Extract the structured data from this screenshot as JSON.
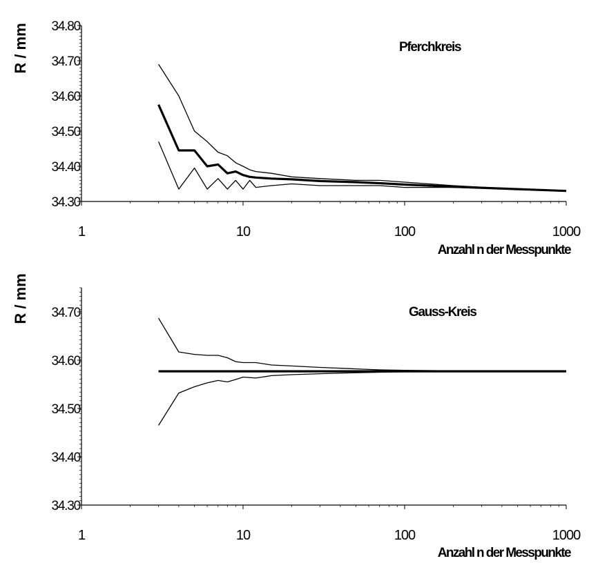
{
  "chart_data": [
    {
      "type": "line",
      "title": "Pferchkreis",
      "xlabel": "Anzahl n der Messpunkte",
      "ylabel": "R / mm",
      "x_scale": "log",
      "xlim": [
        1,
        1000
      ],
      "ylim": [
        34.3,
        34.8
      ],
      "x_ticks": [
        "1",
        "10",
        "100",
        "1000"
      ],
      "y_ticks": [
        "34.30",
        "34.40",
        "34.50",
        "34.60",
        "34.70",
        "34.80"
      ],
      "grid": false,
      "series": [
        {
          "role": "upper",
          "x": [
            3,
            4,
            5,
            6,
            7,
            8,
            9,
            10,
            11,
            12,
            15,
            20,
            30,
            50,
            70,
            100,
            200,
            500,
            1000
          ],
          "y": [
            34.69,
            34.6,
            34.5,
            34.47,
            34.44,
            34.43,
            34.41,
            34.4,
            34.39,
            34.385,
            34.38,
            34.37,
            34.365,
            34.36,
            34.36,
            34.355,
            34.345,
            34.335,
            34.33
          ]
        },
        {
          "role": "mean",
          "x": [
            3,
            4,
            5,
            6,
            7,
            8,
            9,
            10,
            11,
            12,
            15,
            20,
            30,
            50,
            70,
            100,
            200,
            500,
            1000
          ],
          "y": [
            34.575,
            34.445,
            34.445,
            34.4,
            34.405,
            34.38,
            34.385,
            34.375,
            34.37,
            34.368,
            34.365,
            34.363,
            34.358,
            34.355,
            34.352,
            34.348,
            34.342,
            34.335,
            34.33
          ]
        },
        {
          "role": "lower",
          "x": [
            3,
            4,
            5,
            6,
            7,
            8,
            9,
            10,
            11,
            12,
            15,
            20,
            30,
            50,
            70,
            100,
            200,
            500,
            1000
          ],
          "y": [
            34.47,
            34.335,
            34.395,
            34.335,
            34.365,
            34.335,
            34.36,
            34.335,
            34.36,
            34.34,
            34.345,
            34.35,
            34.345,
            34.345,
            34.345,
            34.34,
            34.34,
            34.335,
            34.33
          ]
        }
      ]
    },
    {
      "type": "line",
      "title": "Gauss-Kreis",
      "xlabel": "Anzahl n der Messpunkte",
      "ylabel": "R / mm",
      "x_scale": "log",
      "xlim": [
        1,
        1000
      ],
      "ylim": [
        34.3,
        34.75
      ],
      "x_ticks": [
        "1",
        "10",
        "100",
        "1000"
      ],
      "y_ticks": [
        "34.30",
        "34.40",
        "34.50",
        "34.60",
        "34.70"
      ],
      "grid": false,
      "series": [
        {
          "role": "upper",
          "x": [
            3,
            4,
            5,
            6,
            7,
            8,
            9,
            10,
            12,
            15,
            20,
            30,
            50,
            70,
            100,
            200,
            1000
          ],
          "y": [
            34.687,
            34.617,
            34.612,
            34.61,
            34.61,
            34.605,
            34.597,
            34.595,
            34.595,
            34.59,
            34.588,
            34.585,
            34.582,
            34.58,
            34.579,
            34.578,
            34.577
          ]
        },
        {
          "role": "mean",
          "x": [
            3,
            1000
          ],
          "y": [
            34.577,
            34.577
          ]
        },
        {
          "role": "lower",
          "x": [
            3,
            4,
            5,
            6,
            7,
            8,
            9,
            10,
            12,
            15,
            20,
            30,
            50,
            70,
            100,
            200,
            1000
          ],
          "y": [
            34.465,
            34.532,
            34.545,
            34.553,
            34.558,
            34.555,
            34.56,
            34.565,
            34.563,
            34.568,
            34.57,
            34.572,
            34.574,
            34.575,
            34.576,
            34.577,
            34.577
          ]
        }
      ]
    }
  ]
}
